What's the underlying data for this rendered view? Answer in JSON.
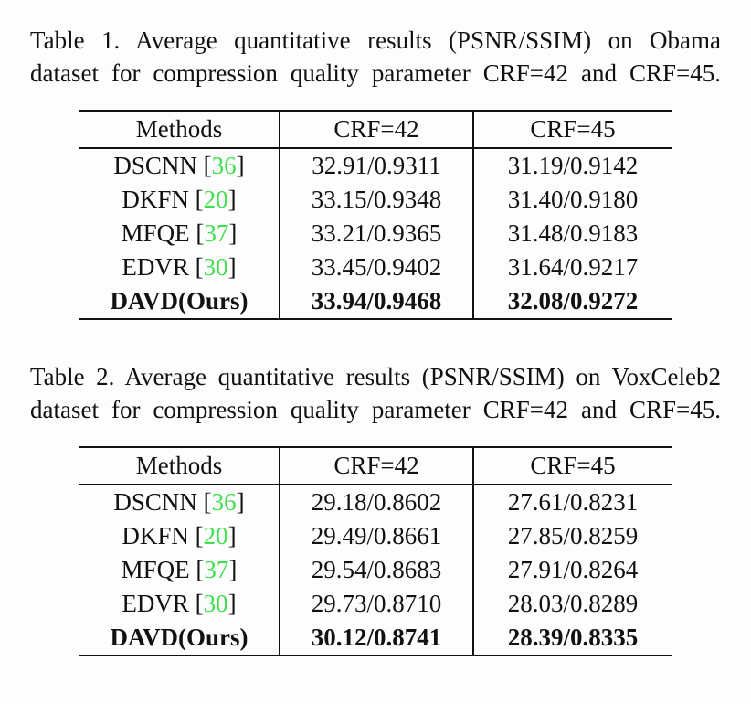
{
  "page": {
    "background": "#fdfdfd",
    "text_color": "#111111",
    "citation_color": "#3fdf50"
  },
  "tables": [
    {
      "name": "Table 1",
      "caption_lines": [
        "Table 1. Average quantitative results (PSNR/SSIM) on Obama",
        "dataset for compression quality parameter CRF=42 and CRF=45."
      ],
      "columns": [
        "Methods",
        "CRF=42",
        "CRF=45"
      ],
      "rows": [
        {
          "method": "DSCNN",
          "citation": "36",
          "crf42": "32.91/0.9311",
          "crf45": "31.19/0.9142",
          "bold": false
        },
        {
          "method": "DKFN",
          "citation": "20",
          "crf42": "33.15/0.9348",
          "crf45": "31.40/0.9180",
          "bold": false
        },
        {
          "method": "MFQE",
          "citation": "37",
          "crf42": "33.21/0.9365",
          "crf45": "31.48/0.9183",
          "bold": false
        },
        {
          "method": "EDVR",
          "citation": "30",
          "crf42": "33.45/0.9402",
          "crf45": "31.64/0.9217",
          "bold": false
        },
        {
          "method": "DAVD(Ours)",
          "citation": null,
          "crf42": "33.94/0.9468",
          "crf45": "32.08/0.9272",
          "bold": true
        }
      ]
    },
    {
      "name": "Table 2",
      "caption_lines": [
        "Table 2. Average quantitative results (PSNR/SSIM) on VoxCeleb2",
        "dataset for compression quality parameter CRF=42 and CRF=45."
      ],
      "columns": [
        "Methods",
        "CRF=42",
        "CRF=45"
      ],
      "rows": [
        {
          "method": "DSCNN",
          "citation": "36",
          "crf42": "29.18/0.8602",
          "crf45": "27.61/0.8231",
          "bold": false
        },
        {
          "method": "DKFN",
          "citation": "20",
          "crf42": "29.49/0.8661",
          "crf45": "27.85/0.8259",
          "bold": false
        },
        {
          "method": "MFQE",
          "citation": "37",
          "crf42": "29.54/0.8683",
          "crf45": "27.91/0.8264",
          "bold": false
        },
        {
          "method": "EDVR",
          "citation": "30",
          "crf42": "29.73/0.8710",
          "crf45": "28.03/0.8289",
          "bold": false
        },
        {
          "method": "DAVD(Ours)",
          "citation": null,
          "crf42": "30.12/0.8741",
          "crf45": "28.39/0.8335",
          "bold": true
        }
      ]
    }
  ]
}
